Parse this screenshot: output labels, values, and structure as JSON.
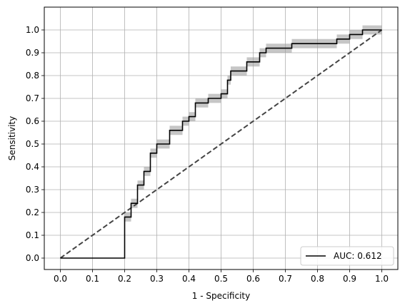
{
  "chart_data": {
    "type": "line",
    "title": "",
    "xlabel": "1 - Specificity",
    "ylabel": "Sensitivity",
    "xlim": [
      -0.05,
      1.05
    ],
    "ylim": [
      -0.05,
      1.1
    ],
    "xticks": [
      "0.0",
      "0.1",
      "0.2",
      "0.3",
      "0.4",
      "0.5",
      "0.6",
      "0.7",
      "0.8",
      "0.9",
      "1.0"
    ],
    "yticks": [
      "0.0",
      "0.1",
      "0.2",
      "0.3",
      "0.4",
      "0.5",
      "0.6",
      "0.7",
      "0.8",
      "0.9",
      "1.0"
    ],
    "grid": true,
    "legend_position": "lower-right",
    "colors": {
      "curve": "#000000",
      "band": "#a0a0a0",
      "diagonal": "#444444",
      "grid": "#b0b0b0"
    },
    "series": [
      {
        "name": "AUC: 0.612",
        "style": "step",
        "points": [
          [
            0.0,
            0.0
          ],
          [
            0.2,
            0.0
          ],
          [
            0.2,
            0.18
          ],
          [
            0.22,
            0.18
          ],
          [
            0.22,
            0.24
          ],
          [
            0.24,
            0.24
          ],
          [
            0.24,
            0.32
          ],
          [
            0.26,
            0.32
          ],
          [
            0.26,
            0.38
          ],
          [
            0.28,
            0.38
          ],
          [
            0.28,
            0.46
          ],
          [
            0.3,
            0.46
          ],
          [
            0.3,
            0.5
          ],
          [
            0.34,
            0.5
          ],
          [
            0.34,
            0.56
          ],
          [
            0.38,
            0.56
          ],
          [
            0.38,
            0.6
          ],
          [
            0.4,
            0.6
          ],
          [
            0.4,
            0.62
          ],
          [
            0.42,
            0.62
          ],
          [
            0.42,
            0.68
          ],
          [
            0.46,
            0.68
          ],
          [
            0.46,
            0.7
          ],
          [
            0.5,
            0.7
          ],
          [
            0.5,
            0.72
          ],
          [
            0.52,
            0.72
          ],
          [
            0.52,
            0.78
          ],
          [
            0.53,
            0.78
          ],
          [
            0.53,
            0.82
          ],
          [
            0.58,
            0.82
          ],
          [
            0.58,
            0.86
          ],
          [
            0.62,
            0.86
          ],
          [
            0.62,
            0.9
          ],
          [
            0.64,
            0.9
          ],
          [
            0.64,
            0.92
          ],
          [
            0.72,
            0.92
          ],
          [
            0.72,
            0.94
          ],
          [
            0.86,
            0.94
          ],
          [
            0.86,
            0.96
          ],
          [
            0.9,
            0.96
          ],
          [
            0.9,
            0.98
          ],
          [
            0.94,
            0.98
          ],
          [
            0.94,
            1.0
          ],
          [
            1.0,
            1.0
          ]
        ],
        "band_halfwidth": 0.02
      },
      {
        "name": "",
        "style": "dashed",
        "points": [
          [
            0.0,
            0.0
          ],
          [
            1.0,
            1.0
          ]
        ]
      }
    ]
  }
}
